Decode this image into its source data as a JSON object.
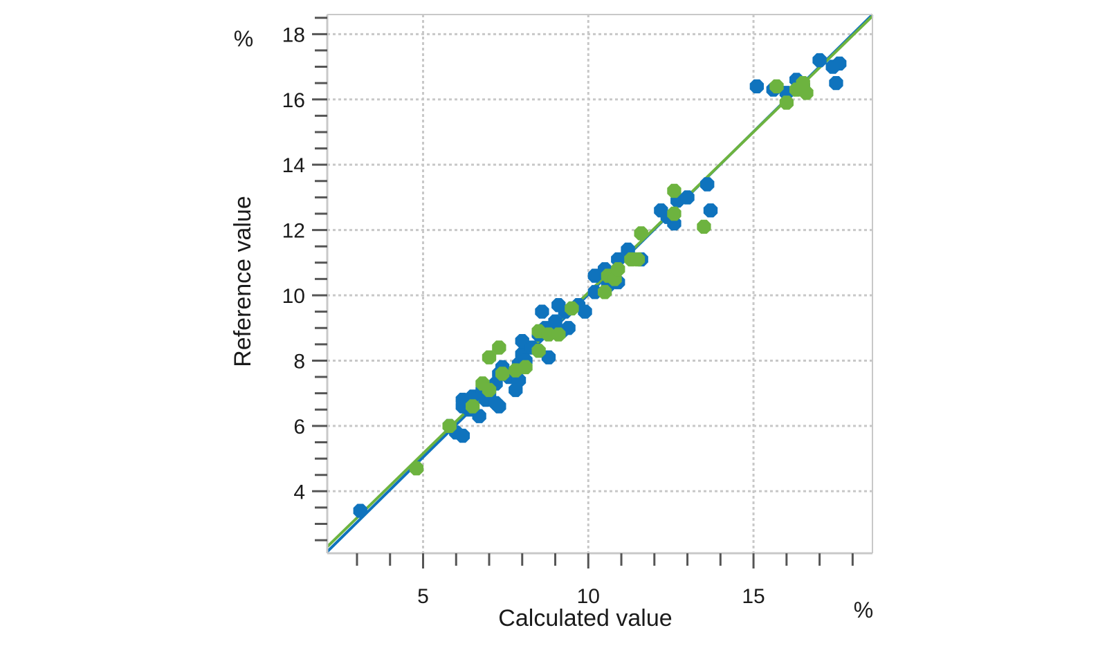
{
  "chart_data": {
    "type": "scatter",
    "title": "",
    "xlabel": "Calculated value",
    "ylabel": "Reference value",
    "x_unit": "%",
    "y_unit": "%",
    "xlim": [
      2.1,
      18.6
    ],
    "ylim": [
      2.1,
      18.6
    ],
    "x_ticks": [
      5,
      10,
      15
    ],
    "y_ticks": [
      4,
      6,
      8,
      10,
      12,
      14,
      16,
      18
    ],
    "grid": true,
    "legend": "none",
    "colors": {
      "calibration": "#0f73bd",
      "validation": "#6db33f",
      "grid": "#c8c8c8",
      "frame": "#c8c8c8",
      "ticks": "#555555"
    },
    "series": [
      {
        "color": "#0f73bd",
        "points": [
          [
            3.1,
            3.4
          ],
          [
            5.8,
            6.0
          ],
          [
            6.0,
            5.8
          ],
          [
            6.2,
            5.7
          ],
          [
            6.2,
            6.6
          ],
          [
            6.2,
            6.8
          ],
          [
            6.4,
            6.5
          ],
          [
            6.5,
            6.9
          ],
          [
            6.7,
            6.3
          ],
          [
            6.8,
            7.1
          ],
          [
            6.9,
            6.8
          ],
          [
            7.0,
            7.0
          ],
          [
            7.2,
            6.7
          ],
          [
            7.3,
            6.6
          ],
          [
            7.2,
            7.3
          ],
          [
            7.3,
            7.6
          ],
          [
            7.4,
            7.8
          ],
          [
            7.6,
            7.5
          ],
          [
            7.8,
            7.1
          ],
          [
            7.9,
            7.4
          ],
          [
            7.9,
            7.9
          ],
          [
            8.0,
            8.2
          ],
          [
            8.0,
            8.6
          ],
          [
            8.1,
            8.0
          ],
          [
            8.3,
            8.4
          ],
          [
            8.5,
            8.8
          ],
          [
            8.6,
            9.5
          ],
          [
            8.7,
            9.0
          ],
          [
            8.8,
            8.1
          ],
          [
            9.0,
            9.2
          ],
          [
            9.1,
            9.7
          ],
          [
            9.2,
            8.9
          ],
          [
            9.3,
            9.5
          ],
          [
            9.4,
            9.0
          ],
          [
            9.7,
            9.7
          ],
          [
            9.9,
            9.5
          ],
          [
            10.2,
            10.1
          ],
          [
            10.2,
            10.6
          ],
          [
            10.5,
            10.8
          ],
          [
            10.6,
            10.3
          ],
          [
            10.9,
            10.4
          ],
          [
            10.9,
            11.1
          ],
          [
            11.2,
            11.4
          ],
          [
            11.6,
            11.1
          ],
          [
            12.2,
            12.6
          ],
          [
            12.4,
            12.4
          ],
          [
            12.6,
            12.2
          ],
          [
            12.7,
            12.9
          ],
          [
            13.0,
            13.0
          ],
          [
            13.6,
            13.4
          ],
          [
            13.7,
            12.6
          ],
          [
            15.1,
            16.4
          ],
          [
            15.6,
            16.3
          ],
          [
            16.0,
            16.2
          ],
          [
            16.3,
            16.6
          ],
          [
            16.5,
            16.4
          ],
          [
            17.0,
            17.2
          ],
          [
            17.4,
            17.0
          ],
          [
            17.6,
            17.1
          ],
          [
            17.5,
            16.5
          ]
        ]
      },
      {
        "color": "#6db33f",
        "points": [
          [
            4.8,
            4.7
          ],
          [
            5.8,
            6.0
          ],
          [
            6.5,
            6.6
          ],
          [
            6.8,
            7.3
          ],
          [
            7.0,
            7.1
          ],
          [
            7.0,
            8.1
          ],
          [
            7.3,
            8.4
          ],
          [
            7.4,
            7.6
          ],
          [
            7.8,
            7.7
          ],
          [
            8.1,
            7.8
          ],
          [
            8.5,
            8.3
          ],
          [
            8.5,
            8.9
          ],
          [
            8.8,
            8.8
          ],
          [
            9.1,
            8.8
          ],
          [
            9.5,
            9.6
          ],
          [
            10.5,
            10.1
          ],
          [
            10.6,
            10.6
          ],
          [
            10.8,
            10.5
          ],
          [
            10.9,
            10.8
          ],
          [
            11.3,
            11.1
          ],
          [
            11.5,
            11.1
          ],
          [
            11.6,
            11.9
          ],
          [
            12.6,
            13.2
          ],
          [
            12.6,
            12.5
          ],
          [
            13.5,
            12.1
          ],
          [
            15.7,
            16.4
          ],
          [
            16.0,
            15.9
          ],
          [
            16.3,
            16.3
          ],
          [
            16.5,
            16.5
          ],
          [
            16.6,
            16.2
          ]
        ]
      }
    ],
    "lines": [
      {
        "color": "#0f73bd",
        "x": [
          2.1,
          18.6
        ],
        "y": [
          2.15,
          18.6
        ]
      },
      {
        "color": "#6db33f",
        "x": [
          2.1,
          18.6
        ],
        "y": [
          2.3,
          18.55
        ]
      }
    ]
  }
}
